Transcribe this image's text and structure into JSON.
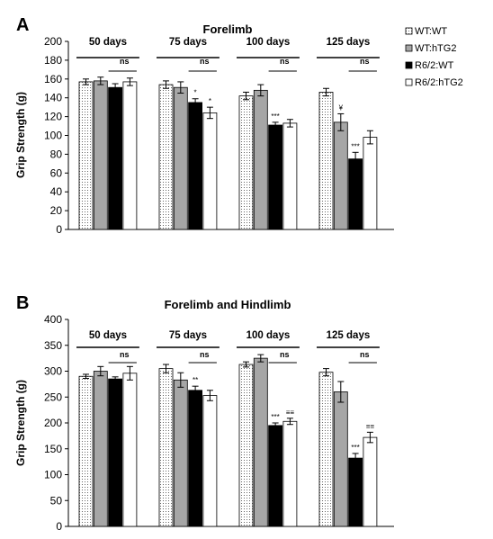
{
  "legend": {
    "entries": [
      {
        "label": "WT:WT",
        "fill": "dots"
      },
      {
        "label": "WT:hTG2",
        "fill": "#a6a6a6"
      },
      {
        "label": "R6/2:WT",
        "fill": "#000000"
      },
      {
        "label": "R6/2:hTG2",
        "fill": "#ffffff"
      }
    ]
  },
  "colors": {
    "wt_wt": "dots",
    "wt_htg2": "#a6a6a6",
    "r62_wt": "#000000",
    "r62_htg2": "#ffffff",
    "axis": "#000000"
  },
  "chart_data": [
    {
      "panel": "A",
      "type": "bar",
      "title": "Forelimb",
      "ylabel": "Grip Strength (g)",
      "xlabel": "",
      "ylim": [
        0,
        200
      ],
      "yticks": [
        "0",
        "20",
        "40",
        "60",
        "80",
        "100",
        "120",
        "140",
        "160",
        "180",
        "200"
      ],
      "grid": false,
      "legend_position": "right",
      "groups": [
        "50 days",
        "75 days",
        "100 days",
        "125 days"
      ],
      "series": [
        {
          "name": "WT:WT",
          "values": [
            157,
            154,
            142,
            146
          ],
          "errors": [
            3,
            4,
            4,
            4
          ]
        },
        {
          "name": "WT:hTG2",
          "values": [
            158,
            151,
            148,
            114
          ],
          "errors": [
            4,
            6,
            6,
            9
          ]
        },
        {
          "name": "R6/2:WT",
          "values": [
            151,
            135,
            111,
            75
          ],
          "errors": [
            4,
            4,
            3,
            7
          ]
        },
        {
          "name": "R6/2:hTG2",
          "values": [
            157,
            124,
            113,
            98
          ],
          "errors": [
            4,
            6,
            4,
            7
          ]
        }
      ],
      "annotations": {
        "ns": [
          "ns",
          "ns",
          "ns",
          "ns"
        ],
        "stars": [
          {
            "group": 1,
            "series": 2,
            "text": "*"
          },
          {
            "group": 1,
            "series": 3,
            "text": "*"
          },
          {
            "group": 2,
            "series": 2,
            "text": "***"
          },
          {
            "group": 3,
            "series": 1,
            "text": "¥"
          },
          {
            "group": 3,
            "series": 2,
            "text": "***"
          }
        ]
      }
    },
    {
      "panel": "B",
      "type": "bar",
      "title": "Forelimb and Hindlimb",
      "ylabel": "Grip Strength (g)",
      "xlabel": "",
      "ylim": [
        0,
        400
      ],
      "yticks": [
        "0",
        "50",
        "100",
        "150",
        "200",
        "250",
        "300",
        "350",
        "400"
      ],
      "grid": false,
      "groups": [
        "50 days",
        "75 days",
        "100 days",
        "125 days"
      ],
      "series": [
        {
          "name": "WT:WT",
          "values": [
            290,
            305,
            313,
            298
          ],
          "errors": [
            4,
            8,
            5,
            7
          ]
        },
        {
          "name": "WT:hTG2",
          "values": [
            300,
            283,
            325,
            260
          ],
          "errors": [
            9,
            14,
            7,
            20
          ]
        },
        {
          "name": "R6/2:WT",
          "values": [
            285,
            263,
            195,
            132
          ],
          "errors": [
            4,
            8,
            5,
            9
          ]
        },
        {
          "name": "R6/2:hTG2",
          "values": [
            296,
            253,
            203,
            172
          ],
          "errors": [
            13,
            10,
            6,
            10
          ]
        }
      ],
      "annotations": {
        "ns": [
          "ns",
          "ns",
          "ns",
          "ns"
        ],
        "stars": [
          {
            "group": 1,
            "series": 2,
            "text": "**"
          },
          {
            "group": 2,
            "series": 2,
            "text": "***"
          },
          {
            "group": 2,
            "series": 3,
            "text": "≡≡"
          },
          {
            "group": 3,
            "series": 2,
            "text": "***"
          },
          {
            "group": 3,
            "series": 3,
            "text": "≡≡"
          }
        ]
      }
    }
  ]
}
